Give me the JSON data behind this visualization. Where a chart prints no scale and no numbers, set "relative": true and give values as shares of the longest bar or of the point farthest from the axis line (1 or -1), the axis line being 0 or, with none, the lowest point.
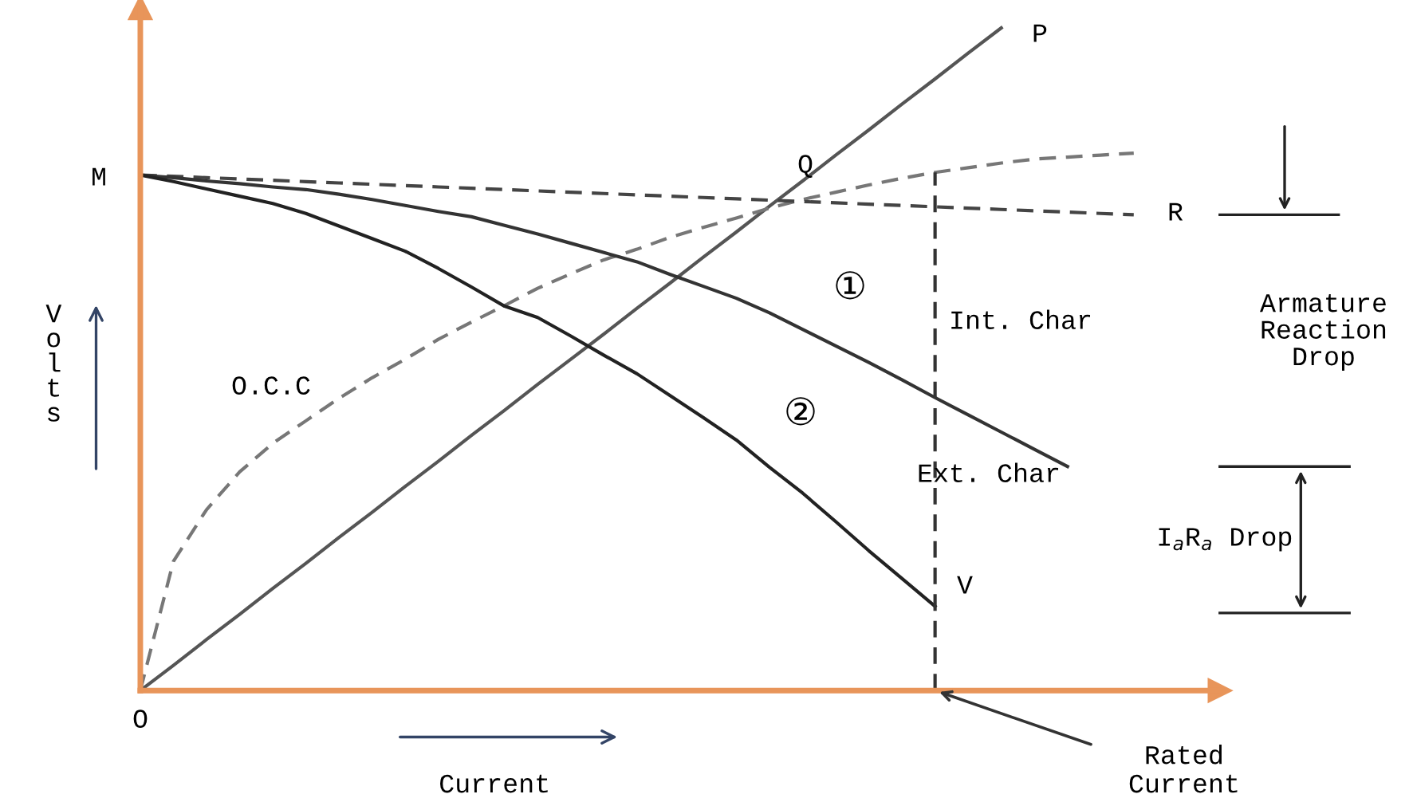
{
  "chart_data": {
    "type": "line",
    "relative": true,
    "xlabel": "Current",
    "ylabel": "Volts",
    "marker": "none",
    "categories": [
      null,
      null,
      null,
      null,
      null,
      null,
      null,
      null,
      null,
      null,
      null,
      null,
      null,
      null,
      null,
      null,
      null,
      null,
      null,
      null,
      null,
      null,
      null,
      null,
      null,
      null,
      null,
      null,
      null,
      null,
      null,
      null,
      null
    ],
    "series": [
      {
        "color": "#555555",
        "line_style": "solid",
        "values": [
          0,
          0.038,
          0.077,
          0.115,
          0.154,
          0.192,
          0.231,
          0.269,
          0.308,
          0.346,
          0.385,
          0.423,
          0.462,
          0.5,
          0.538,
          0.577,
          0.615,
          0.654,
          0.692,
          0.731,
          0.769,
          0.808,
          0.846,
          0.885,
          0.923,
          0.962,
          1.0,
          null,
          null,
          null,
          null,
          null,
          null
        ]
      },
      {
        "color": "#777777",
        "line_style": "dashed",
        "values": [
          0,
          0.195,
          0.273,
          0.33,
          0.373,
          0.407,
          0.441,
          0.472,
          0.5,
          0.53,
          0.556,
          0.581,
          0.607,
          0.629,
          0.65,
          0.666,
          0.684,
          0.699,
          0.713,
          0.728,
          0.741,
          0.752,
          0.763,
          0.773,
          0.782,
          0.789,
          0.796,
          0.802,
          0.805,
          0.808,
          0.811,
          null,
          null
        ]
      },
      {
        "color": "#444444",
        "line_style": "dashed",
        "values": [
          0.778,
          0.776,
          0.774,
          0.772,
          0.77,
          0.768,
          0.766,
          0.764,
          0.762,
          0.76,
          0.758,
          0.756,
          0.754,
          0.752,
          0.75,
          0.748,
          0.746,
          0.744,
          0.742,
          0.74,
          0.738,
          0.736,
          0.734,
          0.732,
          0.73,
          0.728,
          0.726,
          0.724,
          0.722,
          0.72,
          0.718,
          null,
          null
        ]
      },
      {
        "color": "#333333",
        "line_style": "solid",
        "values": [
          0.778,
          0.774,
          0.769,
          0.765,
          0.76,
          0.756,
          0.749,
          0.741,
          0.732,
          0.723,
          0.715,
          0.702,
          0.689,
          0.675,
          0.661,
          0.647,
          0.628,
          0.61,
          0.592,
          0.57,
          0.545,
          0.52,
          0.495,
          0.469,
          0.442,
          0.416,
          0.39,
          0.364,
          0.338,
          null,
          null,
          null,
          null
        ]
      },
      {
        "color": "#222222",
        "line_style": "solid",
        "values": [
          0.778,
          0.768,
          0.757,
          0.746,
          0.735,
          0.72,
          0.701,
          0.682,
          0.663,
          0.637,
          0.609,
          0.58,
          0.563,
          0.535,
          0.506,
          0.478,
          0.445,
          0.412,
          0.378,
          0.337,
          0.298,
          0.255,
          0.211,
          0.169,
          0.127,
          null,
          null,
          null,
          null,
          null,
          null,
          null,
          null
        ]
      }
    ],
    "ref_lines": [
      {
        "axis": "x",
        "label": "Rated Current",
        "color": "#333333",
        "line_style": "dashed"
      }
    ],
    "annotations": [
      "M",
      "Q",
      "R",
      "P",
      "V",
      "O",
      "①",
      "②",
      "Int. Char",
      "Ext. Char",
      "O.C.C",
      "Armature Reaction Drop",
      "I$_{a}$R$_{a}$ Drop"
    ]
  }
}
